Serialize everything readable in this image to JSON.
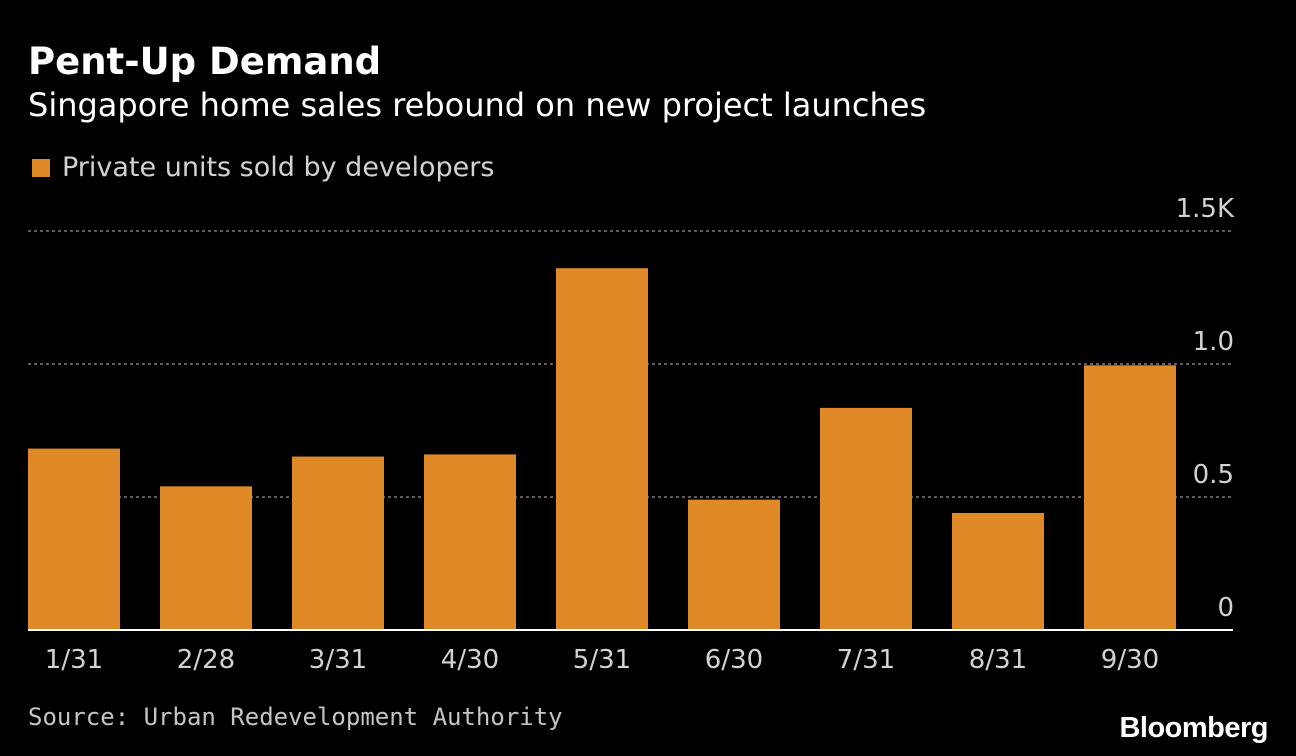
{
  "title": "Pent-Up Demand",
  "subtitle": "Singapore home sales rebound on new project launches",
  "source": "Source: Urban Redevelopment Authority",
  "brand": "Bloomberg",
  "colors": {
    "bar": "#df8a26",
    "background": "#000000",
    "gridline": "#7a7a7a",
    "axis": "#ffffff",
    "tick_text": "#d2d2d2"
  },
  "chart_data": {
    "type": "bar",
    "categories": [
      "1/31",
      "2/28",
      "3/31",
      "4/30",
      "5/31",
      "6/30",
      "7/31",
      "8/31",
      "9/30"
    ],
    "series": [
      {
        "name": "Private units sold by developers",
        "values": [
          682,
          540,
          652,
          660,
          1360,
          490,
          835,
          440,
          995
        ]
      }
    ],
    "yticks": [
      0,
      0.5,
      1.0,
      1.5
    ],
    "ytick_labels": [
      "0",
      "0.5",
      "1.0",
      "1.5K"
    ],
    "ylim": [
      0,
      1500
    ],
    "y_axis_position": "right",
    "grid": true,
    "legend": "top-left",
    "xlabel": "",
    "ylabel": ""
  }
}
